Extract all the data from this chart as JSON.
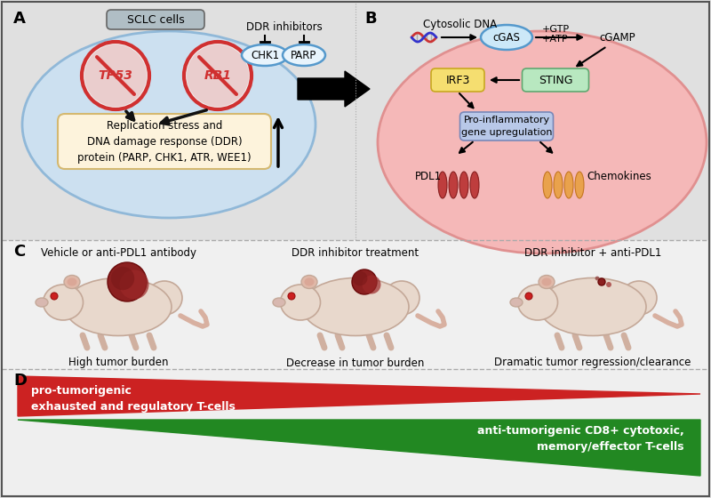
{
  "background_color": "#e0e0e0",
  "panel_A_label": "A",
  "panel_B_label": "B",
  "panel_C_label": "C",
  "panel_D_label": "D",
  "sclc_header": "SCLC cells",
  "sclc_header_color": "#b0bec5",
  "sclc_header_ec": "#888888",
  "ellipse_A_color": "#cce0f0",
  "ellipse_A_ec": "#90b8d8",
  "ellipse_B_color": "#f5b8b8",
  "ellipse_B_ec": "#e09090",
  "tp53_color": "#d03030",
  "rb1_color": "#d03030",
  "replication_box_color": "#fdf3dc",
  "replication_box_ec": "#d4b870",
  "replication_text": "Replication stress and\nDNA damage response (DDR)\nprotein (PARP, CHK1, ATR, WEE1)",
  "ddr_inhibitors_text": "DDR inhibitors",
  "chk1_text": "CHK1",
  "parp_text": "PARP",
  "chk1_parp_color": "#e8f4fc",
  "chk1_parp_ec": "#5599cc",
  "cytosolic_dna_text": "Cytosolic DNA",
  "cgas_text": "cGAS",
  "cgas_color": "#cce8f8",
  "cgas_ec": "#5599cc",
  "gtp_text": "+GTP",
  "atp_text": "+ATP",
  "cgamp_text": "cGAMP",
  "irf3_text": "IRF3",
  "irf3_color": "#f5de70",
  "irf3_ec": "#c8a820",
  "sting_text": "STING",
  "sting_color": "#b8e8c0",
  "sting_ec": "#60a870",
  "proinflam_text": "Pro-inflammatory\ngene upregulation",
  "proinflam_color": "#b8c8e8",
  "proinflam_ec": "#7888b8",
  "pdl1_text": "PDL1",
  "pdl1_color": "#b83030",
  "chemokines_text": "Chemokines",
  "chemokines_color": "#e8a040",
  "c_title1": "Vehicle or anti-PDL1 antibody",
  "c_title2": "DDR inhibitor treatment",
  "c_title3": "DDR inhibitor + anti-PDL1",
  "c_caption1": "High tumor burden",
  "c_caption2": "Decrease in tumor burden",
  "c_caption3": "Dramatic tumor regression/clearance",
  "rat_body_color": "#e8d8cc",
  "rat_body_ec": "#c4a898",
  "rat_ear_color": "#e0b8a8",
  "rat_eye_color": "#cc2020",
  "rat_nose_color": "#cc8888",
  "rat_tail_color": "#d8b0a0",
  "tumor_color": "#8b2020",
  "tumor_sizes": [
    22,
    14,
    4
  ],
  "red_triangle_text": "pro-tumorigenic\nexhausted and regulatory T-cells",
  "green_triangle_text": "anti-tumorigenic CD8+ cytotoxic,\nmemory/effector T-cells",
  "red_color": "#cc2222",
  "green_color": "#228822",
  "section_line_color": "#aaaaaa",
  "label_fontsize": 13,
  "body_fontsize": 9,
  "small_fontsize": 8
}
